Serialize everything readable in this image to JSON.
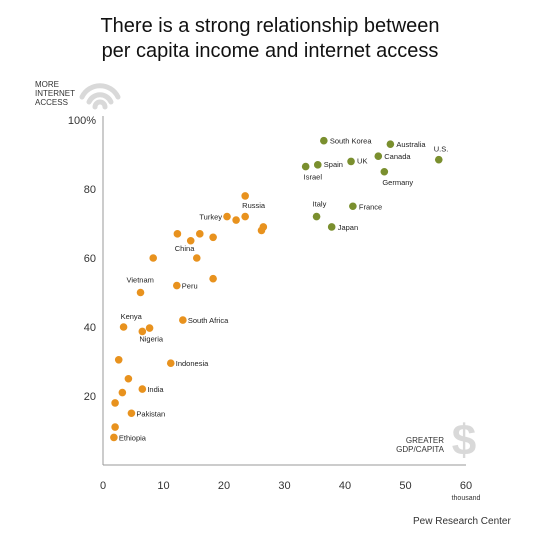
{
  "title_line1": "There is a strong relationship between",
  "title_line2": "per capita income and internet access",
  "source": "Pew Research Center",
  "colors": {
    "emerging": "#e8921e",
    "advanced": "#7a8f2e",
    "icon": "#d9d9d9",
    "axis": "#999999",
    "label": "#333333"
  },
  "chart_data": {
    "type": "scatter",
    "ylabel_lines": [
      "MORE",
      "INTERNET",
      "ACCESS"
    ],
    "xlabel_lines": [
      "GREATER",
      "GDP/CAPITA"
    ],
    "x_unit": "thousand",
    "xlim": [
      0,
      60
    ],
    "ylim": [
      0,
      100
    ],
    "x_ticks": [
      "0",
      "10",
      "20",
      "30",
      "40",
      "50",
      "60"
    ],
    "y_ticks": [
      "20",
      "40",
      "60",
      "80",
      "100%"
    ],
    "series": [
      {
        "group": "advanced",
        "points": [
          {
            "label": "South Korea",
            "x": 36.5,
            "y": 94
          },
          {
            "label": "Australia",
            "x": 47.5,
            "y": 93
          },
          {
            "label": "U.S.",
            "x": 55.5,
            "y": 88.5
          },
          {
            "label": "Canada",
            "x": 45.5,
            "y": 89.5
          },
          {
            "label": "UK",
            "x": 41,
            "y": 88
          },
          {
            "label": "Spain",
            "x": 35.5,
            "y": 87
          },
          {
            "label": "Israel",
            "x": 33.5,
            "y": 86.5
          },
          {
            "label": "Germany",
            "x": 46.5,
            "y": 85
          },
          {
            "label": "Italy",
            "x": 35.3,
            "y": 72
          },
          {
            "label": "France",
            "x": 41.3,
            "y": 75
          },
          {
            "label": "Japan",
            "x": 37.8,
            "y": 69
          }
        ]
      },
      {
        "group": "emerging",
        "points": [
          {
            "label": "Russia",
            "x": 23.5,
            "y": 78
          },
          {
            "label": "Turkey",
            "x": 20.5,
            "y": 72
          },
          {
            "label": "",
            "x": 22,
            "y": 71
          },
          {
            "label": "",
            "x": 23.5,
            "y": 72
          },
          {
            "label": "",
            "x": 26.5,
            "y": 69
          },
          {
            "label": "",
            "x": 26.2,
            "y": 68
          },
          {
            "label": "",
            "x": 12.3,
            "y": 67
          },
          {
            "label": "",
            "x": 16,
            "y": 67
          },
          {
            "label": "",
            "x": 14.5,
            "y": 65
          },
          {
            "label": "",
            "x": 18.2,
            "y": 66
          },
          {
            "label": "China",
            "x": 15.5,
            "y": 60
          },
          {
            "label": "",
            "x": 8.3,
            "y": 60
          },
          {
            "label": "",
            "x": 18.2,
            "y": 54
          },
          {
            "label": "Peru",
            "x": 12.2,
            "y": 52
          },
          {
            "label": "Vietnam",
            "x": 6.2,
            "y": 50
          },
          {
            "label": "South Africa",
            "x": 13.2,
            "y": 42
          },
          {
            "label": "Kenya",
            "x": 3.4,
            "y": 40
          },
          {
            "label": "",
            "x": 7.7,
            "y": 39.7
          },
          {
            "label": "Nigeria",
            "x": 6.5,
            "y": 38.7
          },
          {
            "label": "",
            "x": 2.6,
            "y": 30.5
          },
          {
            "label": "Indonesia",
            "x": 11.2,
            "y": 29.5
          },
          {
            "label": "",
            "x": 4.2,
            "y": 25
          },
          {
            "label": "India",
            "x": 6.5,
            "y": 22
          },
          {
            "label": "",
            "x": 3.2,
            "y": 21
          },
          {
            "label": "",
            "x": 2,
            "y": 18
          },
          {
            "label": "Pakistan",
            "x": 4.7,
            "y": 15
          },
          {
            "label": "",
            "x": 2,
            "y": 11
          },
          {
            "label": "Ethiopia",
            "x": 1.8,
            "y": 8
          }
        ]
      }
    ]
  }
}
